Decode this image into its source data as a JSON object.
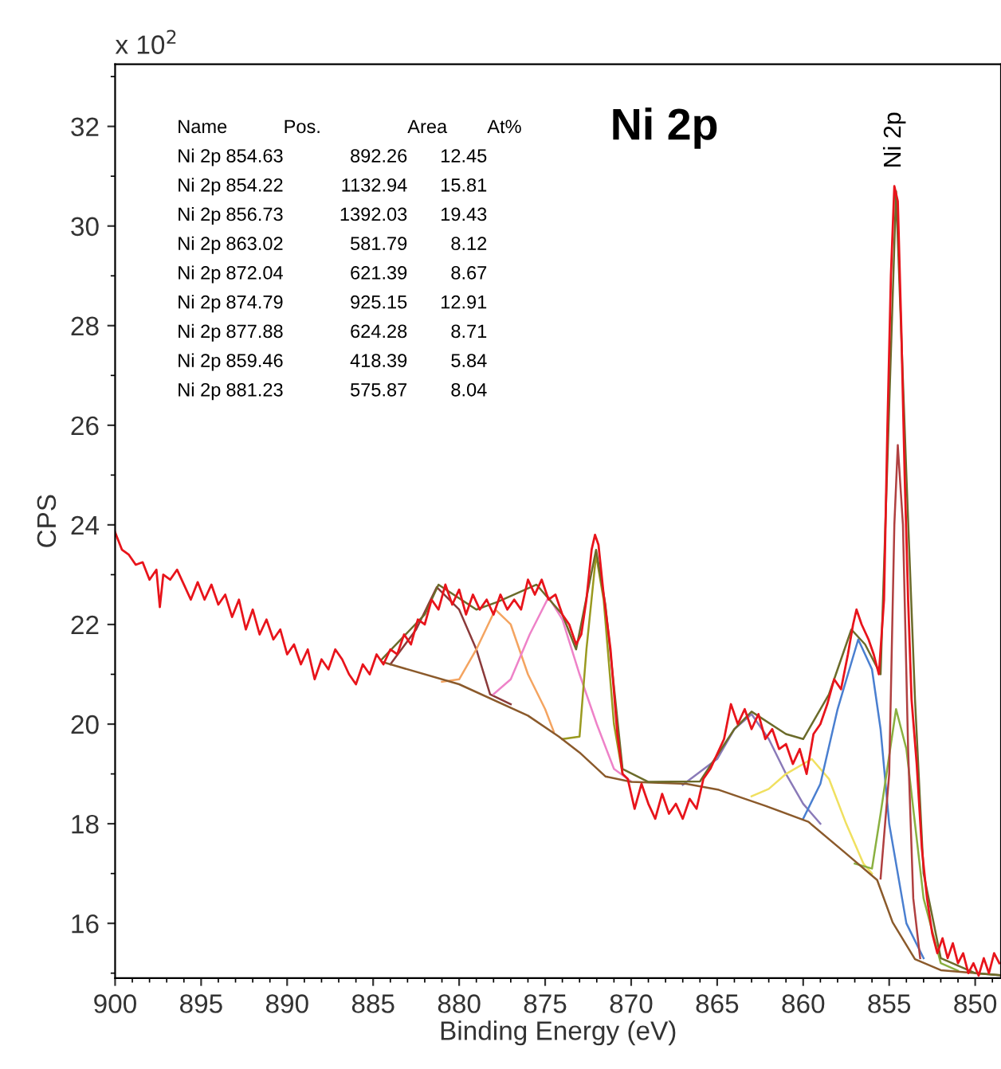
{
  "chart_data": {
    "type": "line",
    "title": "Ni 2p",
    "xlabel": "Binding Energy (eV)",
    "ylabel": "CPS",
    "xlim": [
      900,
      848.5
    ],
    "xticks": [
      900,
      895,
      890,
      885,
      880,
      875,
      870,
      865,
      860,
      855,
      850
    ],
    "ylim": [
      14.9,
      33.25
    ],
    "yticks": [
      16,
      18,
      20,
      22,
      24,
      26,
      28,
      30,
      32
    ],
    "grid": false,
    "legend": false,
    "annotations": [
      "x 10$^{2}$",
      "Name",
      "Pos.",
      "Area",
      "At%",
      "Ni 2p",
      "854.63",
      "892.26",
      "12.45",
      "Ni 2p",
      "854.22",
      "1132.94",
      "15.81",
      "Ni 2p",
      "856.73",
      "1392.03",
      "19.43",
      "Ni 2p",
      "863.02",
      "581.79",
      "8.12",
      "Ni 2p",
      "872.04",
      "621.39",
      "8.67",
      "Ni 2p",
      "874.79",
      "925.15",
      "12.91",
      "Ni 2p",
      "877.88",
      "624.28",
      "8.71",
      "Ni 2p",
      "859.46",
      "418.39",
      "5.84",
      "Ni 2p",
      "881.23",
      "575.87",
      "8.04",
      {
        "text": "Ni 2p",
        "x": 854.7,
        "y": 30.8
      }
    ],
    "series": [
      {
        "color": "#8b3a3a",
        "x": [
          884,
          882.5,
          881.3,
          880,
          879,
          878.2,
          877
        ],
        "values": [
          21.2,
          21.9,
          22.75,
          22.3,
          21.5,
          20.6,
          20.4
        ]
      },
      {
        "color": "#f4a460",
        "x": [
          881,
          880,
          879,
          877.9,
          877,
          876,
          875,
          874.5
        ],
        "values": [
          20.85,
          20.9,
          21.5,
          22.3,
          22.0,
          21.0,
          20.3,
          19.85
        ]
      },
      {
        "color": "#ee82c8",
        "x": [
          878,
          877,
          875.9,
          874.8,
          874,
          873,
          872,
          871,
          870
        ],
        "values": [
          20.6,
          20.9,
          21.8,
          22.55,
          22.1,
          21.0,
          20.0,
          19.1,
          18.85
        ]
      },
      {
        "color": "#9a9a20",
        "x": [
          874,
          873,
          872.6,
          872.04,
          871.6,
          871,
          870.5
        ],
        "values": [
          19.7,
          19.75,
          21.5,
          23.4,
          22.5,
          20.0,
          19.0
        ]
      },
      {
        "color": "#8a7ab8",
        "x": [
          867,
          865,
          864,
          863,
          862,
          861,
          860,
          859
        ],
        "values": [
          18.78,
          19.3,
          19.9,
          20.2,
          19.7,
          19.0,
          18.4,
          18.0
        ]
      },
      {
        "color": "#f0e060",
        "x": [
          863,
          862,
          861,
          859.5,
          858.5,
          857.5,
          856.5,
          856
        ],
        "values": [
          18.55,
          18.7,
          19.0,
          19.3,
          18.9,
          18.0,
          17.2,
          17.0
        ]
      },
      {
        "color": "#4a7fd0",
        "x": [
          860,
          859,
          858,
          856.8,
          856,
          855.5,
          855,
          854,
          853
        ],
        "values": [
          18.1,
          18.8,
          20.3,
          21.7,
          21.1,
          19.9,
          18.0,
          16.0,
          15.3
        ]
      },
      {
        "color": "#8ab040",
        "x": [
          857,
          856,
          855.5,
          854.6,
          854,
          853.5,
          853,
          852,
          851
        ],
        "values": [
          17.2,
          17.1,
          18.2,
          20.3,
          19.5,
          18.0,
          16.5,
          15.2,
          15.05
        ]
      },
      {
        "color": "#b04040",
        "x": [
          855.5,
          855.0,
          854.7,
          854.5,
          854.2,
          853.9,
          853.6,
          853.2
        ],
        "values": [
          16.9,
          19.0,
          24.0,
          25.6,
          24.0,
          19.5,
          16.5,
          15.3
        ]
      },
      {
        "color": "#8b5a2b",
        "x": [
          884.4,
          880,
          876,
          874.2,
          873,
          871.5,
          870,
          866.8,
          864.9,
          862.2,
          859.7,
          857.5,
          855.7,
          854.8,
          853.5,
          852,
          848.6
        ],
        "values": [
          21.24,
          20.8,
          20.17,
          19.75,
          19.43,
          18.95,
          18.84,
          18.8,
          18.68,
          18.36,
          18.04,
          17.4,
          16.87,
          16.02,
          15.28,
          15.06,
          14.96
        ]
      },
      {
        "color": "#6b6b2a",
        "x": [
          884.5,
          882,
          881.2,
          879,
          877.8,
          875.5,
          874,
          873.2,
          872.04,
          871.5,
          870.5,
          869,
          866,
          864,
          863,
          861,
          860,
          858.5,
          857.2,
          856.4,
          855.5,
          854.6,
          854.0,
          853.5,
          853,
          852,
          850,
          848.6
        ],
        "values": [
          21.3,
          22.2,
          22.8,
          22.3,
          22.45,
          22.8,
          22.2,
          21.5,
          23.5,
          22.4,
          19.1,
          18.84,
          18.85,
          19.9,
          20.25,
          19.8,
          19.7,
          20.6,
          21.9,
          21.6,
          21.0,
          30.7,
          25.0,
          20.5,
          17.0,
          15.3,
          15.0,
          14.96
        ]
      },
      {
        "color": "#e8141b",
        "x": [
          900,
          899.6,
          899.2,
          898.8,
          898.4,
          898,
          897.6,
          897.4,
          897.2,
          896.8,
          896.4,
          896,
          895.6,
          895.2,
          894.8,
          894.4,
          894,
          893.6,
          893.2,
          892.8,
          892.4,
          892,
          891.6,
          891.2,
          890.8,
          890.4,
          890,
          889.6,
          889.2,
          888.8,
          888.4,
          888,
          887.6,
          887.2,
          886.8,
          886.4,
          886,
          885.6,
          885.2,
          884.8,
          884.4,
          884,
          883.6,
          883.2,
          882.8,
          882.4,
          882,
          881.6,
          881.2,
          880.8,
          880.4,
          880,
          879.6,
          879.2,
          878.8,
          878.4,
          878,
          877.6,
          877.2,
          876.8,
          876.4,
          876,
          875.6,
          875.2,
          874.8,
          874.4,
          874,
          873.6,
          873.2,
          872.9,
          872.6,
          872.3,
          872.1,
          871.9,
          871.6,
          871.2,
          870.8,
          870.5,
          870.2,
          869.8,
          869.4,
          869,
          868.6,
          868.2,
          867.8,
          867.4,
          867,
          866.6,
          866.2,
          865.8,
          865.4,
          865,
          864.6,
          864.2,
          863.8,
          863.4,
          863,
          862.6,
          862.2,
          861.8,
          861.4,
          861,
          860.6,
          860.2,
          859.8,
          859.4,
          859,
          858.6,
          858.2,
          857.8,
          857.4,
          857.1,
          856.9,
          856.6,
          856.2,
          855.9,
          855.6,
          855.3,
          855.1,
          854.9,
          854.7,
          854.5,
          854.3,
          854.1,
          853.9,
          853.7,
          853.4,
          853.1,
          852.8,
          852.5,
          852.2,
          851.9,
          851.6,
          851.3,
          851,
          850.7,
          850.4,
          850.1,
          849.8,
          849.5,
          849.2,
          848.9,
          848.6
        ],
        "values": [
          23.85,
          23.5,
          23.4,
          23.2,
          23.25,
          22.9,
          23.1,
          22.35,
          23.0,
          22.9,
          23.1,
          22.8,
          22.5,
          22.85,
          22.5,
          22.8,
          22.4,
          22.6,
          22.15,
          22.5,
          21.9,
          22.3,
          21.8,
          22.1,
          21.7,
          21.9,
          21.4,
          21.6,
          21.2,
          21.5,
          20.9,
          21.3,
          21.1,
          21.5,
          21.3,
          21.0,
          20.8,
          21.2,
          21.0,
          21.4,
          21.2,
          21.5,
          21.4,
          21.8,
          21.6,
          22.1,
          22.0,
          22.5,
          22.3,
          22.8,
          22.4,
          22.7,
          22.2,
          22.6,
          22.3,
          22.5,
          22.2,
          22.6,
          22.3,
          22.5,
          22.3,
          22.9,
          22.6,
          22.9,
          22.5,
          22.6,
          22.2,
          22.0,
          21.6,
          21.8,
          22.5,
          23.5,
          23.8,
          23.6,
          22.6,
          21.5,
          19.8,
          19.0,
          18.9,
          18.3,
          18.8,
          18.4,
          18.1,
          18.6,
          18.2,
          18.4,
          18.1,
          18.5,
          18.3,
          18.9,
          19.1,
          19.4,
          19.7,
          20.4,
          20.0,
          20.3,
          19.9,
          20.2,
          19.7,
          19.9,
          19.5,
          19.6,
          19.2,
          19.5,
          19.0,
          19.8,
          20.0,
          20.4,
          20.9,
          20.7,
          21.4,
          22.0,
          22.3,
          22.0,
          21.7,
          21.4,
          21.0,
          22.5,
          26.0,
          29.0,
          30.8,
          30.5,
          28.0,
          25.0,
          22.5,
          20.5,
          19.2,
          17.5,
          16.5,
          15.8,
          15.4,
          15.7,
          15.3,
          15.6,
          15.2,
          15.4,
          15.0,
          15.2,
          14.95,
          15.3,
          15.0,
          15.4,
          15.2
        ]
      }
    ]
  }
}
